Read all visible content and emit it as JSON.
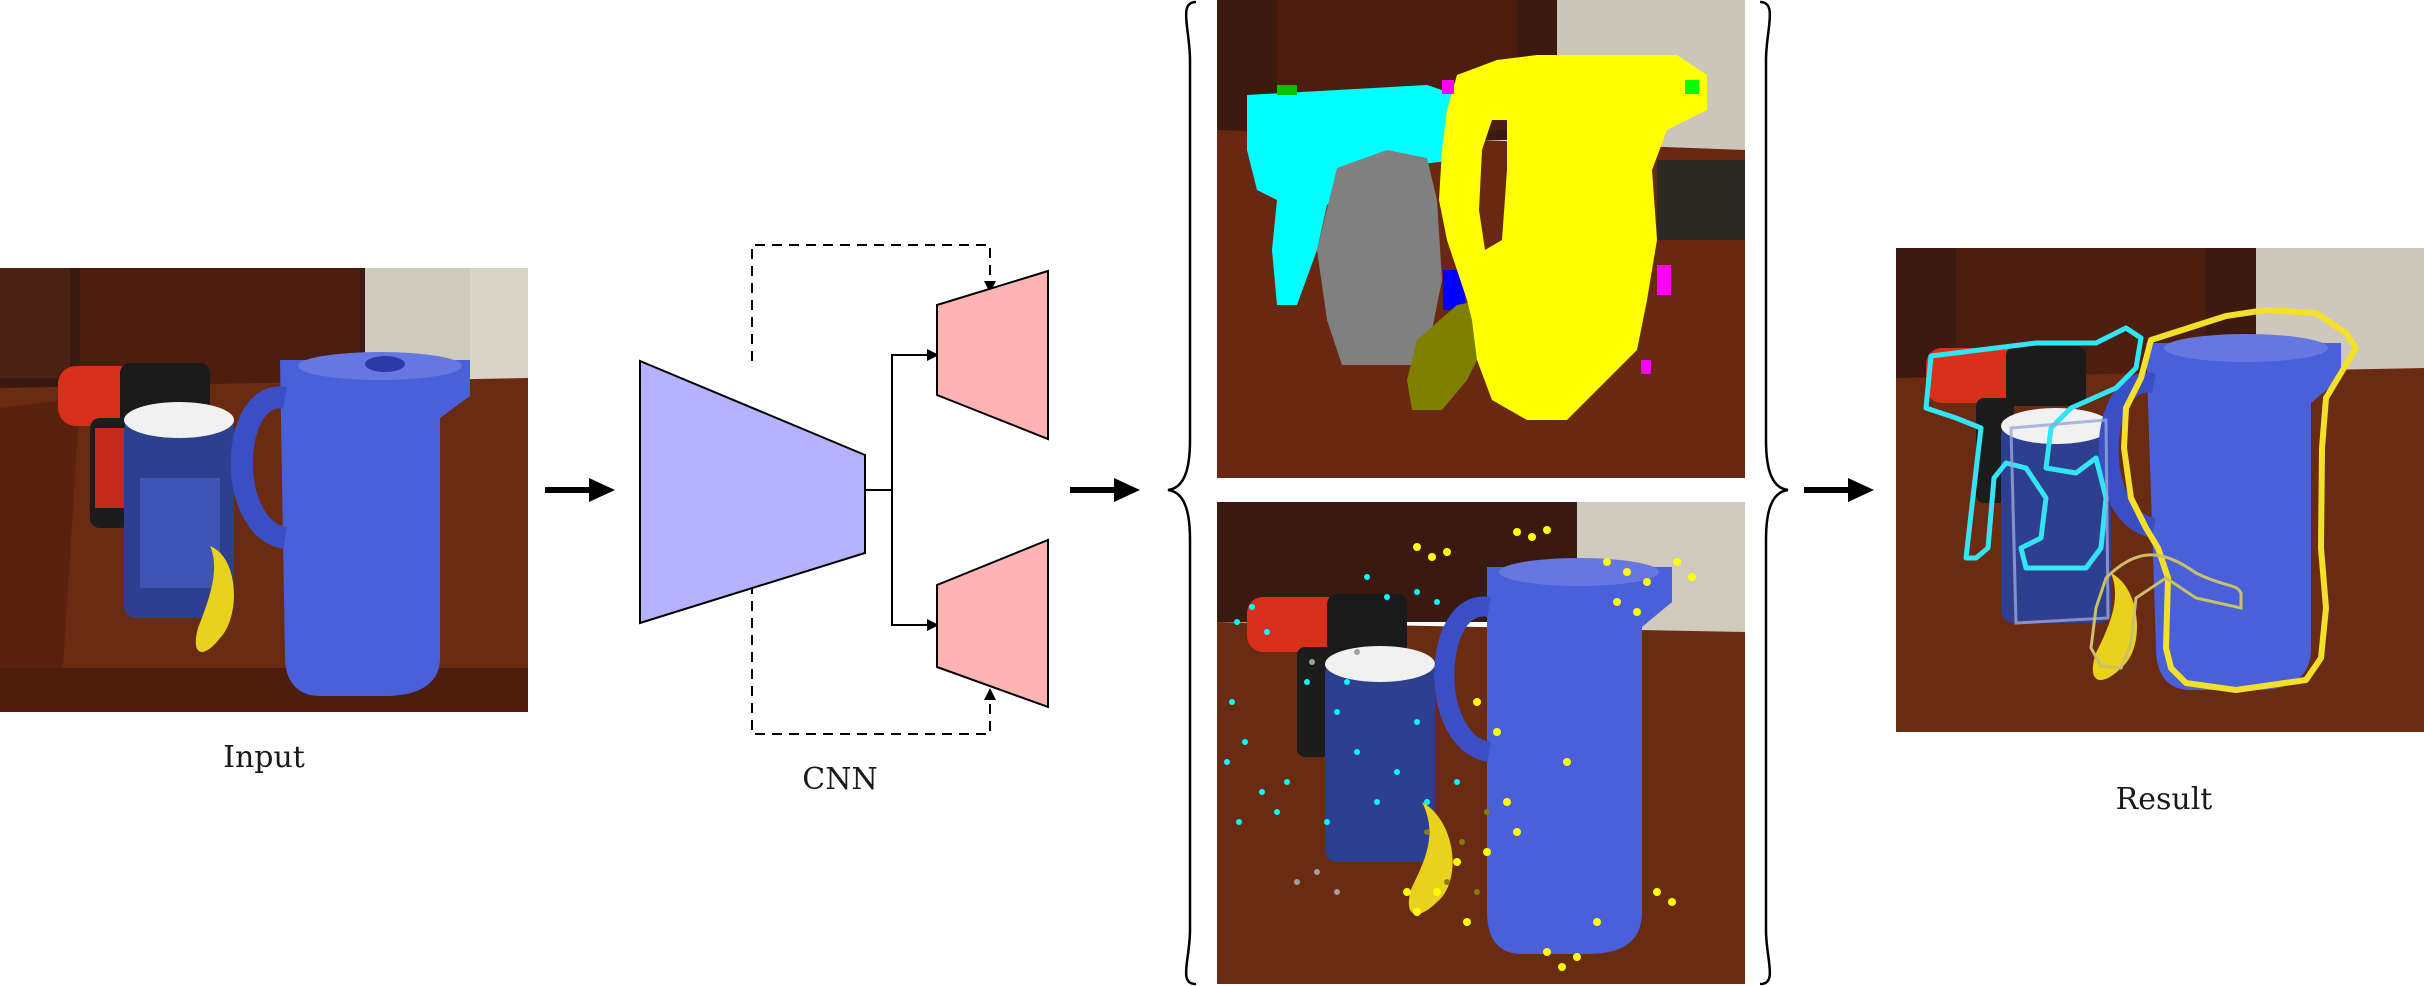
{
  "labels": {
    "input": "Input",
    "cnn": "CNN",
    "result": "Result"
  },
  "colors": {
    "encoder": "#b3b3ff",
    "decoder": "#ffb3b3",
    "segment_cyan": "#00ffff",
    "segment_yellow": "#ffff00",
    "segment_gray": "#808080",
    "segment_olive": "#808000",
    "segment_blue": "#0000ff",
    "segment_magenta": "#ff00ff",
    "segment_green": "#00ff00",
    "table_wood": "#6b2a12",
    "pitcher_blue": "#4a60d8"
  },
  "images": {
    "input": "photo-of-drill-can-pitcher-banana-on-table",
    "segmentation": "per-pixel-semantic-segmentation-mask",
    "vote": "keypoint-vote-scatter-overlay",
    "result": "detected-object-contours-overlay"
  },
  "icons": [
    "arrow-right-icon",
    "curly-brace-left-icon",
    "curly-brace-right-icon",
    "skip-connection-dashed-line"
  ]
}
